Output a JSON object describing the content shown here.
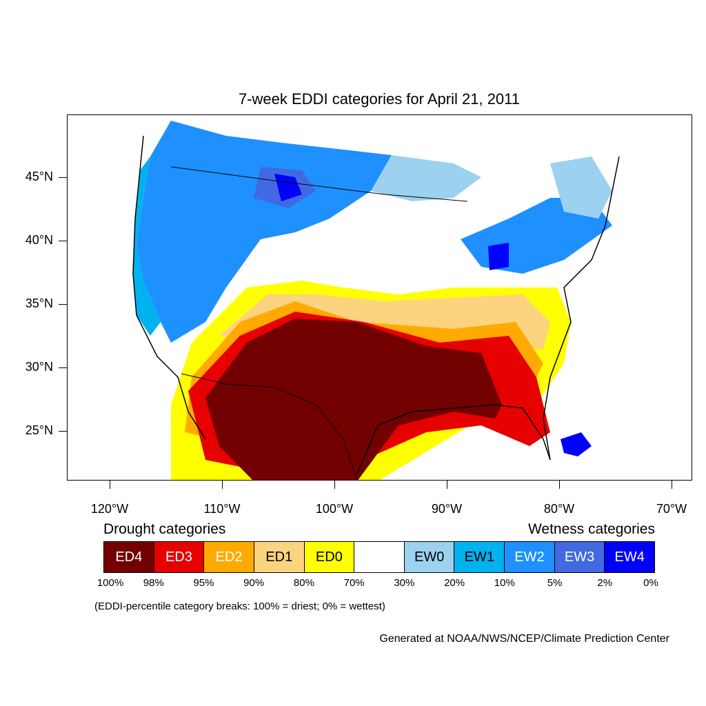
{
  "title": "7-week EDDI categories for April 21, 2011",
  "axes": {
    "lat_labels": [
      "45°N",
      "40°N",
      "35°N",
      "30°N",
      "25°N"
    ],
    "lon_labels": [
      "120°W",
      "110°W",
      "100°W",
      "90°W",
      "80°W",
      "70°W"
    ]
  },
  "legend": {
    "drought_heading": "Drought categories",
    "wetness_heading": "Wetness categories",
    "categories": [
      {
        "label": "ED4",
        "color": "#730000",
        "text_color": "#ffffff"
      },
      {
        "label": "ED3",
        "color": "#e60000",
        "text_color": "#ffffff"
      },
      {
        "label": "ED2",
        "color": "#ffaa00",
        "text_color": "#ffffff"
      },
      {
        "label": "ED1",
        "color": "#fcd37f",
        "text_color": "#000000"
      },
      {
        "label": "ED0",
        "color": "#ffff00",
        "text_color": "#000000"
      },
      {
        "label": "",
        "color": "#ffffff",
        "text_color": "#000000"
      },
      {
        "label": "EW0",
        "color": "#9cd1f0",
        "text_color": "#000000"
      },
      {
        "label": "EW1",
        "color": "#00b2ee",
        "text_color": "#000000"
      },
      {
        "label": "EW2",
        "color": "#1e90ff",
        "text_color": "#ffffff"
      },
      {
        "label": "EW3",
        "color": "#4169e1",
        "text_color": "#ffffff"
      },
      {
        "label": "EW4",
        "color": "#0000ff",
        "text_color": "#ffffff"
      }
    ],
    "breaks": [
      "100%",
      "98%",
      "95%",
      "90%",
      "80%",
      "70%",
      "30%",
      "20%",
      "10%",
      "5%",
      "2%",
      "0%"
    ]
  },
  "note": "(EDDI-percentile category breaks: 100% = driest; 0% = wettest)",
  "credit": "Generated at NOAA/NWS/NCEP/Climate Prediction Center"
}
